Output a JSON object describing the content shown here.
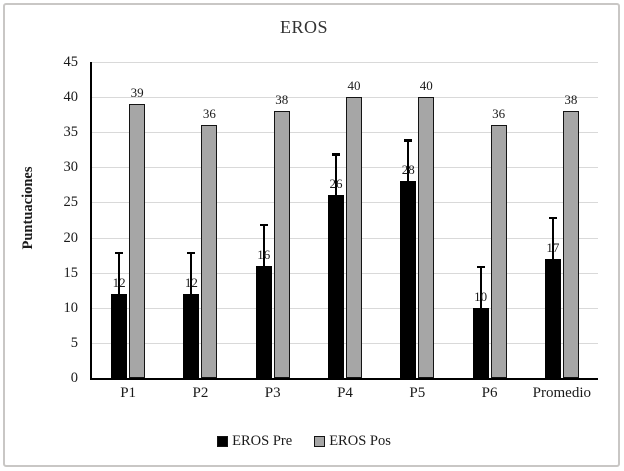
{
  "figure": {
    "frame_border_color": "#c9c7c5",
    "background_color": "#ffffff"
  },
  "chart_data": {
    "type": "bar",
    "title": "EROS",
    "ylabel": "Puntuaciones",
    "categories": [
      "P1",
      "P2",
      "P3",
      "P4",
      "P5",
      "P6",
      "Promedio"
    ],
    "series": [
      {
        "name": "EROS Pre",
        "color": "#000000",
        "values": [
          12,
          12,
          16,
          26,
          28,
          10,
          17
        ],
        "error_plus": [
          6,
          6,
          6,
          6,
          6,
          6,
          6
        ]
      },
      {
        "name": "EROS Pos",
        "color": "#a6a6a6",
        "values": [
          39,
          36,
          38,
          40,
          40,
          36,
          38
        ]
      }
    ],
    "ylim": [
      0,
      45
    ],
    "ytick_step": 5,
    "grid": true,
    "gridline_color": "#d9d9d9",
    "legend_position": "bottom",
    "legend_labels": [
      "EROS Pre",
      "EROS Pos"
    ]
  }
}
